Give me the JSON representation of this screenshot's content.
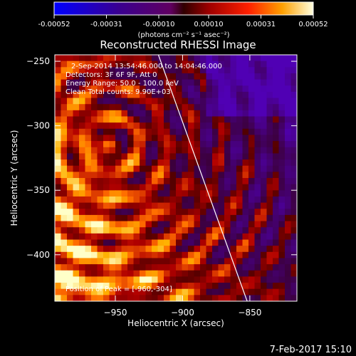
{
  "colorbar": {
    "ticks": [
      "-0.00052",
      "-0.00031",
      "-0.00010",
      "0.00010",
      "0.00031",
      "0.00052"
    ],
    "values": [
      -0.00052,
      -0.00031,
      -0.0001,
      0.0001,
      0.00031,
      0.00052
    ],
    "range": [
      -0.00052,
      0.00052
    ],
    "label": "(photons cm⁻² s⁻¹ asec⁻²)"
  },
  "chart_data": {
    "type": "heatmap",
    "title": "Reconstructed RHESSI Image",
    "xlabel": "Heliocentric X (arcsec)",
    "ylabel": "Heliocentric Y (arcsec)",
    "xlim": [
      -995,
      -815
    ],
    "ylim": [
      -436,
      -245
    ],
    "xticks": [
      -950,
      -900,
      -850
    ],
    "yticks": [
      -250,
      -300,
      -350,
      -400
    ],
    "xtick_labels": [
      "−950",
      "−900",
      "−850"
    ],
    "ytick_labels": [
      "−250",
      "−300",
      "−350",
      "−400"
    ],
    "limb_line": {
      "x": [
        -918,
        -852
      ],
      "y": [
        -245,
        -436
      ]
    },
    "annotations": [
      "2-Sep-2014 13:54:46.000 to 14:04:46.000",
      "Detectors: 3F 6F 9F, Att 0",
      "Energy Range: 50.0 - 100.0 keV",
      "Clean    Total counts: 9.90E+03"
    ],
    "peak_label": "Position of Peak = [-960,-304]",
    "peak": [
      -960,
      -304
    ]
  },
  "footer": {
    "timestamp": "7-Feb-2017 15:10"
  }
}
